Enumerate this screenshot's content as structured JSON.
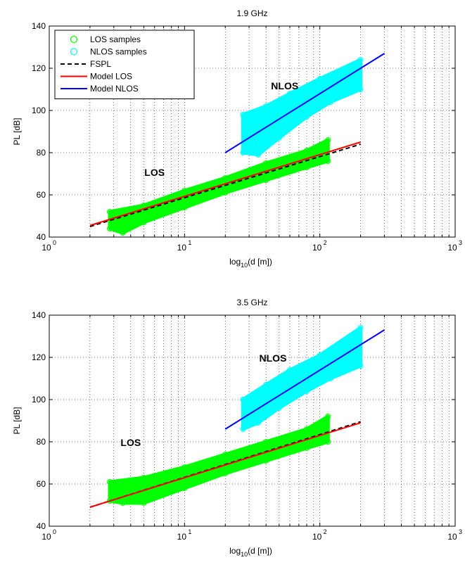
{
  "chart_data": [
    {
      "type": "scatter",
      "title": "1.9 GHz",
      "xlabel_base": "log",
      "xlabel_sub": "10",
      "xlabel_rest": "(d [m])",
      "ylabel": "PL [dB]",
      "xscale": "log",
      "xlim": [
        1,
        1000
      ],
      "ylim": [
        40,
        140
      ],
      "yticks": [
        40,
        60,
        80,
        100,
        120,
        140
      ],
      "xticks": [
        {
          "value": 1,
          "base": "10",
          "exp": "0"
        },
        {
          "value": 10,
          "base": "10",
          "exp": "1"
        },
        {
          "value": 100,
          "base": "10",
          "exp": "2"
        },
        {
          "value": 1000,
          "base": "10",
          "exp": "3"
        }
      ],
      "grid": true,
      "legend_position": "top-left",
      "legend": [
        "LOS samples",
        "NLOS samples",
        "FSPL",
        "Model LOS",
        "Model NLOS"
      ],
      "scatter_bands": [
        {
          "name": "LOS samples",
          "color": "#00ff00",
          "polygon": [
            [
              2.8,
              44
            ],
            [
              2.8,
              52
            ],
            [
              5,
              55
            ],
            [
              10,
              62
            ],
            [
              20,
              68
            ],
            [
              40,
              75
            ],
            [
              80,
              81
            ],
            [
              115,
              86
            ],
            [
              115,
              76
            ],
            [
              80,
              73
            ],
            [
              40,
              67
            ],
            [
              20,
              61
            ],
            [
              10,
              54
            ],
            [
              5,
              47
            ],
            [
              3.5,
              42
            ]
          ]
        },
        {
          "name": "NLOS samples",
          "color": "#00ffff",
          "polygon": [
            [
              27,
              80
            ],
            [
              27,
              98
            ],
            [
              40,
              102
            ],
            [
              60,
              108
            ],
            [
              100,
              115
            ],
            [
              200,
              124
            ],
            [
              200,
              110
            ],
            [
              120,
              104
            ],
            [
              80,
              97
            ],
            [
              50,
              87
            ],
            [
              35,
              79
            ]
          ]
        }
      ],
      "lines": [
        {
          "name": "FSPL",
          "color": "#000000",
          "dash": true,
          "points": [
            [
              2,
              45
            ],
            [
              200,
              84
            ]
          ]
        },
        {
          "name": "Model LOS",
          "color": "#ff0000",
          "dash": false,
          "points": [
            [
              2,
              45.5
            ],
            [
              200,
              85
            ]
          ]
        },
        {
          "name": "Model NLOS",
          "color": "#0000ff",
          "dash": false,
          "points": [
            [
              20,
              80
            ],
            [
              300,
              127
            ]
          ]
        }
      ],
      "annotations": [
        {
          "text": "NLOS",
          "x": 55,
          "y": 110
        },
        {
          "text": "LOS",
          "x": 6,
          "y": 69
        }
      ]
    },
    {
      "type": "scatter",
      "title": "3.5 GHz",
      "xlabel_base": "log",
      "xlabel_sub": "10",
      "xlabel_rest": "(d [m])",
      "ylabel": "PL [dB]",
      "xscale": "log",
      "xlim": [
        1,
        1000
      ],
      "ylim": [
        40,
        140
      ],
      "yticks": [
        40,
        60,
        80,
        100,
        120,
        140
      ],
      "xticks": [
        {
          "value": 1,
          "base": "10",
          "exp": "0"
        },
        {
          "value": 10,
          "base": "10",
          "exp": "1"
        },
        {
          "value": 100,
          "base": "10",
          "exp": "2"
        },
        {
          "value": 1000,
          "base": "10",
          "exp": "3"
        }
      ],
      "grid": true,
      "scatter_bands": [
        {
          "name": "LOS samples",
          "color": "#00ff00",
          "polygon": [
            [
              2.8,
              52
            ],
            [
              2.8,
              61
            ],
            [
              5,
              63
            ],
            [
              10,
              68
            ],
            [
              20,
              74
            ],
            [
              40,
              80
            ],
            [
              80,
              86
            ],
            [
              115,
              92
            ],
            [
              115,
              80
            ],
            [
              80,
              77
            ],
            [
              40,
              71
            ],
            [
              20,
              65
            ],
            [
              10,
              58
            ],
            [
              5,
              51
            ],
            [
              3.5,
              51
            ]
          ]
        },
        {
          "name": "NLOS samples",
          "color": "#00ffff",
          "polygon": [
            [
              27,
              86
            ],
            [
              27,
              100
            ],
            [
              40,
              107
            ],
            [
              60,
              114
            ],
            [
              100,
              121
            ],
            [
              200,
              134
            ],
            [
              200,
              116
            ],
            [
              120,
              110
            ],
            [
              80,
              104
            ],
            [
              50,
              96
            ],
            [
              35,
              89
            ]
          ]
        }
      ],
      "lines": [
        {
          "name": "FSPL",
          "color": "#000000",
          "dash": true,
          "points": [
            [
              2,
              49
            ],
            [
              200,
              89.5
            ]
          ]
        },
        {
          "name": "Model LOS",
          "color": "#ff0000",
          "dash": false,
          "points": [
            [
              2,
              49
            ],
            [
              200,
              89
            ]
          ]
        },
        {
          "name": "Model NLOS",
          "color": "#0000ff",
          "dash": false,
          "points": [
            [
              20,
              86
            ],
            [
              300,
              133
            ]
          ]
        }
      ],
      "annotations": [
        {
          "text": "NLOS",
          "x": 45,
          "y": 118
        },
        {
          "text": "LOS",
          "x": 4,
          "y": 78
        }
      ]
    }
  ]
}
